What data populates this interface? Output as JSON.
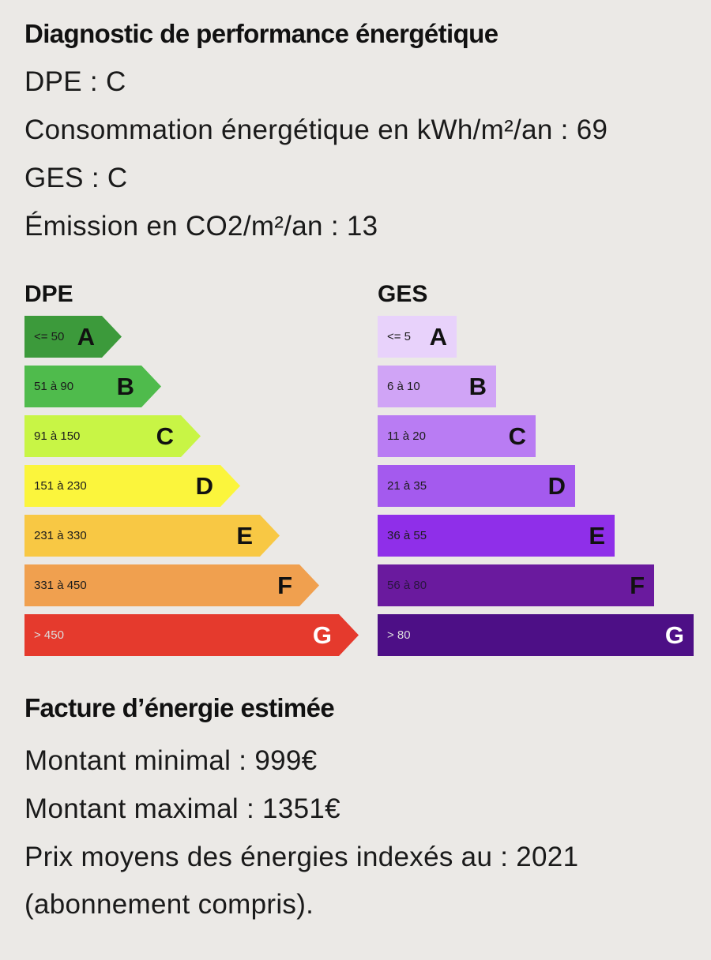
{
  "diagnostic": {
    "title": "Diagnostic de performance énergétique",
    "dpe_line": "DPE : C",
    "consumption_line": "Consommation énergétique en kWh/m²/an : 69",
    "ges_line": "GES : C",
    "emission_line": "Émission en CO2/m²/an : 13"
  },
  "dpe_scale": {
    "title": "DPE",
    "current_class": "C",
    "classes": [
      {
        "letter": "A",
        "range": "<= 50",
        "color": "#3c9a3b"
      },
      {
        "letter": "B",
        "range": "51 à 90",
        "color": "#4fbb4c"
      },
      {
        "letter": "C",
        "range": "91 à 150",
        "color": "#c8f545"
      },
      {
        "letter": "D",
        "range": "151 à 230",
        "color": "#fbf53c"
      },
      {
        "letter": "E",
        "range": "231 à 330",
        "color": "#f8c844"
      },
      {
        "letter": "F",
        "range": "331 à 450",
        "color": "#f0a04f"
      },
      {
        "letter": "G",
        "range": "> 450",
        "color": "#e53a2d"
      }
    ]
  },
  "ges_scale": {
    "title": "GES",
    "current_class": "C",
    "classes": [
      {
        "letter": "A",
        "range": "<= 5",
        "color": "#e8d2fb"
      },
      {
        "letter": "B",
        "range": "6 à 10",
        "color": "#d0a4f6"
      },
      {
        "letter": "C",
        "range": "11 à 20",
        "color": "#b97cf3"
      },
      {
        "letter": "D",
        "range": "21 à 35",
        "color": "#a45aee"
      },
      {
        "letter": "E",
        "range": "36 à 55",
        "color": "#8f2fe9"
      },
      {
        "letter": "F",
        "range": "56 à 80",
        "color": "#6a1a9e"
      },
      {
        "letter": "G",
        "range": "> 80",
        "color": "#4d0f86"
      }
    ]
  },
  "bill": {
    "title": "Facture d’énergie estimée",
    "min_line": "Montant minimal : 999€",
    "max_line": "Montant maximal : 1351€",
    "prices_line": "Prix moyens des énergies indexés au : 2021",
    "subscription_line": "(abonnement compris)."
  }
}
